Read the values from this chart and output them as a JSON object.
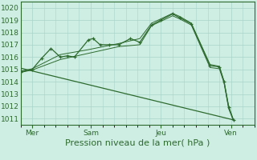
{
  "bg_color": "#ceeee4",
  "grid_color": "#aad4c8",
  "line_color": "#2d6a2d",
  "title": "Pression niveau de la mer( hPa )",
  "ylim": [
    1010.5,
    1020.5
  ],
  "yticks": [
    1011,
    1012,
    1013,
    1014,
    1015,
    1016,
    1017,
    1018,
    1019,
    1020
  ],
  "xlim": [
    0,
    10.0
  ],
  "x_tick_positions": [
    0.5,
    3.0,
    6.0,
    9.0
  ],
  "x_tick_labels": [
    "Mer",
    "Sam",
    "Jeu",
    "Ven"
  ],
  "series_main": {
    "x": [
      0.0,
      0.5,
      0.9,
      1.3,
      1.7,
      2.0,
      2.3,
      2.9,
      3.1,
      3.4,
      3.8,
      4.2,
      4.7,
      5.1,
      5.6,
      6.0,
      6.5,
      6.8,
      7.3,
      8.1,
      8.5,
      8.7,
      8.9,
      9.1
    ],
    "y": [
      1014.8,
      1015.0,
      1015.9,
      1016.7,
      1016.0,
      1016.1,
      1016.0,
      1017.4,
      1017.5,
      1017.0,
      1017.0,
      1017.0,
      1017.5,
      1017.2,
      1018.6,
      1019.0,
      1019.5,
      1019.2,
      1018.7,
      1015.3,
      1015.2,
      1014.0,
      1011.9,
      1010.9
    ]
  },
  "trend_line": {
    "x": [
      0.0,
      9.1
    ],
    "y": [
      1015.1,
      1010.9
    ]
  },
  "upper_line": {
    "x": [
      0.0,
      0.5,
      1.7,
      2.9,
      4.2,
      5.1,
      5.6,
      6.0,
      6.5,
      6.8,
      7.3,
      8.1,
      8.5,
      8.7,
      8.9,
      9.1
    ],
    "y": [
      1014.85,
      1015.05,
      1016.2,
      1016.6,
      1017.1,
      1017.5,
      1018.75,
      1019.1,
      1019.55,
      1019.3,
      1018.75,
      1015.4,
      1015.25,
      1014.05,
      1012.0,
      1010.9
    ]
  },
  "lower_line": {
    "x": [
      0.0,
      0.5,
      1.7,
      2.9,
      4.2,
      5.1,
      5.6,
      6.0,
      6.5,
      6.8,
      7.3,
      8.1,
      8.5,
      8.7,
      8.9,
      9.1
    ],
    "y": [
      1014.75,
      1014.95,
      1015.8,
      1016.3,
      1016.85,
      1017.0,
      1018.55,
      1018.9,
      1019.35,
      1019.1,
      1018.6,
      1015.15,
      1015.05,
      1013.9,
      1011.8,
      1010.85
    ]
  },
  "ylabel_fontsize": 6.5,
  "xlabel_fontsize": 8.0,
  "tick_fontsize": 6.5
}
